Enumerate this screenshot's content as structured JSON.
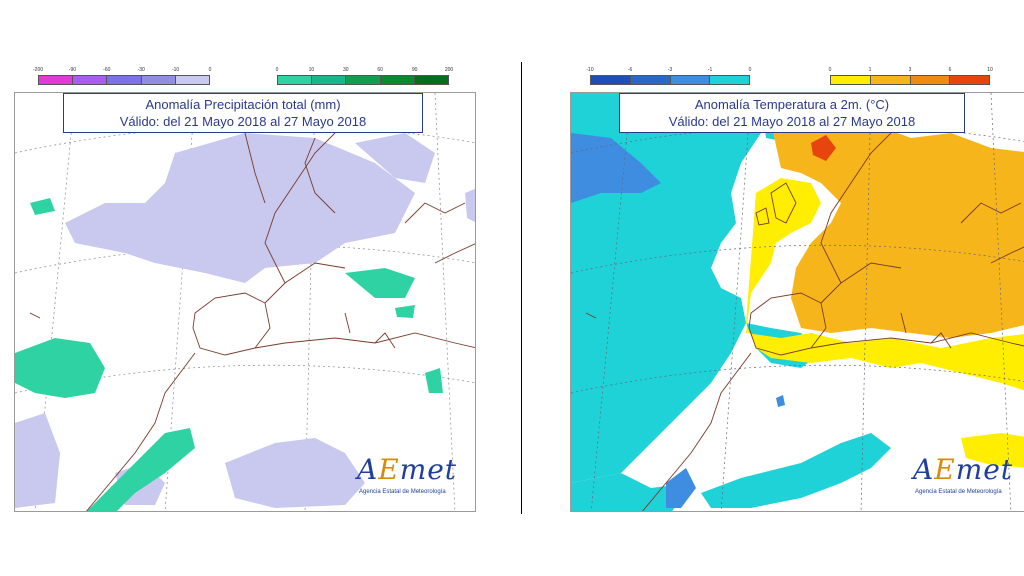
{
  "left_map": {
    "title_line1": "Anomalía Precipitación total (mm)",
    "title_line2": "Válido: del 21 Mayo 2018 al 27 Mayo 2018",
    "legend_negative": {
      "ticks": [
        "-200",
        "-90",
        "-60",
        "-30",
        "-10",
        "0"
      ],
      "colors": [
        "#e23ad6",
        "#a85cf0",
        "#7c71e8",
        "#8f8ee0",
        "#c9c8ef"
      ]
    },
    "legend_positive": {
      "ticks": [
        "0",
        "10",
        "30",
        "60",
        "90",
        "200"
      ],
      "colors": [
        "#2fd3a3",
        "#19b88c",
        "#119e4f",
        "#0a8a2f",
        "#056e1a"
      ]
    }
  },
  "right_map": {
    "title_line1": "Anomalía Temperatura a 2m. (°C)",
    "title_line2": "Válido: del 21 Mayo 2018 al 27 Mayo 2018",
    "legend_negative": {
      "ticks": [
        "-10",
        "-6",
        "-3",
        "-1",
        "0"
      ],
      "colors": [
        "#1f4fb8",
        "#2a68c8",
        "#3f8de0",
        "#1fd2d8"
      ]
    },
    "legend_positive": {
      "ticks": [
        "0",
        "1",
        "3",
        "6",
        "10"
      ],
      "colors": [
        "#ffee00",
        "#f7b51c",
        "#f08b12",
        "#e8450e"
      ]
    }
  },
  "logo": {
    "word_prefix": "A",
    "word_accent": "E",
    "word_suffix": "met",
    "subtitle": "Agencia Estatal de Meteorología"
  },
  "colors": {
    "land_border": "#7a3a2a",
    "grid_line": "#888888",
    "precip_negative_fill": "#c9c8ef",
    "precip_positive_fill": "#2fd3a3",
    "temp_negative_fill": "#1fd2d8",
    "temp_deep_negative_fill": "#3f8de0",
    "temp_low_positive_fill": "#ffee00",
    "temp_positive_fill": "#f7b51c",
    "temp_high_positive_fill": "#e8450e"
  }
}
